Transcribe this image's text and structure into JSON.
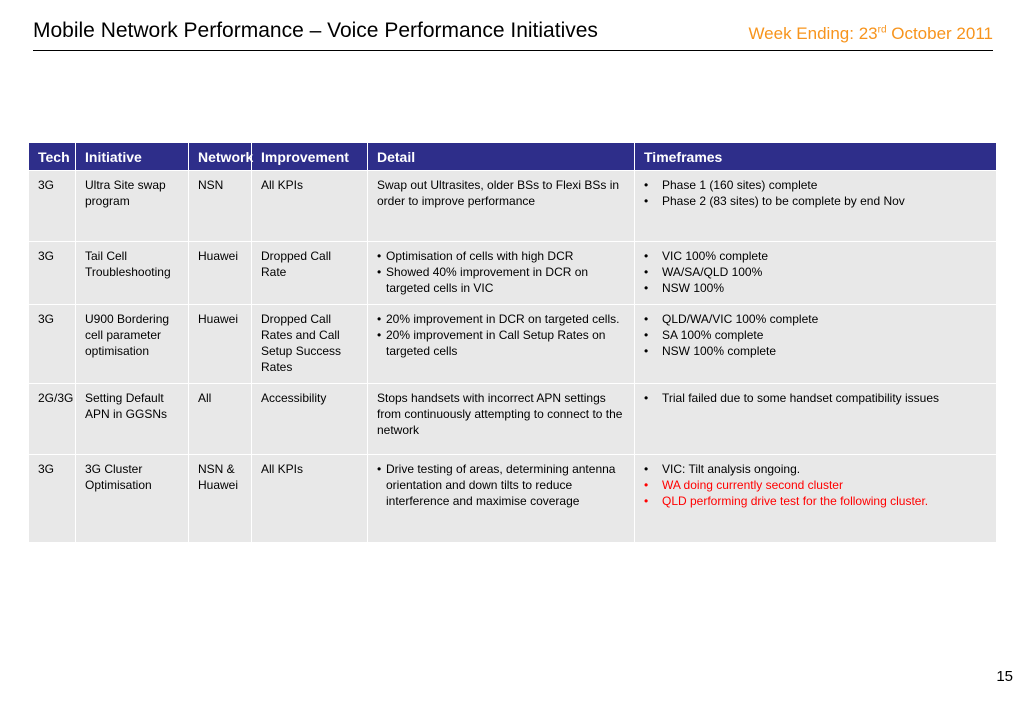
{
  "header": {
    "title": "Mobile Network Performance – Voice Performance Initiatives",
    "week_prefix": "Week Ending: 23",
    "week_sup": "rd",
    "week_suffix": " October 2011"
  },
  "table": {
    "columns": [
      "Tech",
      "Initiative",
      "Network",
      "Improvement",
      "Detail",
      "Timeframes"
    ],
    "rows": [
      {
        "tech": "3G",
        "initiative": "Ultra Site swap program",
        "network": "NSN",
        "improvement": "All KPIs",
        "detail_text": "Swap out Ultrasites, older BSs to Flexi BSs in order to improve performance",
        "timeframes": [
          "Phase 1 (160 sites) complete",
          "Phase 2 (83 sites) to be complete by end Nov"
        ]
      },
      {
        "tech": "3G",
        "initiative": "Tail Cell Troubleshooting",
        "network": "Huawei",
        "improvement": "Dropped Call Rate",
        "detail_bullets": [
          "Optimisation of cells with high DCR",
          "Showed 40% improvement in DCR on targeted cells in VIC"
        ],
        "timeframes": [
          "VIC 100% complete",
          "WA/SA/QLD 100%",
          "NSW 100%"
        ]
      },
      {
        "tech": "3G",
        "initiative": "U900 Bordering cell parameter optimisation",
        "network": "Huawei",
        "improvement": "Dropped Call Rates and Call Setup Success Rates",
        "detail_bullets": [
          "20% improvement in DCR on targeted cells.",
          "20% improvement in Call Setup Rates on targeted cells"
        ],
        "timeframes": [
          "QLD/WA/VIC 100% complete",
          "SA 100% complete",
          "NSW 100% complete"
        ]
      },
      {
        "tech": "2G/3G",
        "initiative": "Setting Default APN in GGSNs",
        "network": "All",
        "improvement": "Accessibility",
        "detail_text": "Stops handsets with incorrect APN settings from continuously attempting to connect to the network",
        "timeframes": [
          "Trial failed due to some handset compatibility issues"
        ]
      },
      {
        "tech": "3G",
        "initiative": "3G Cluster Optimisation",
        "network": "NSN & Huawei",
        "improvement": "All KPIs",
        "detail_bullets": [
          "Drive testing of areas, determining antenna orientation and down tilts to reduce interference and maximise coverage"
        ],
        "timeframes": [
          "VIC: Tilt analysis ongoing.",
          "WA doing currently second cluster",
          "QLD performing drive test for the following cluster."
        ]
      }
    ]
  },
  "colors": {
    "header_bg": "#2e2e8a",
    "cell_bg": "#e8e8e8",
    "week_color": "#f7941d",
    "highlight_red": "#ff0000"
  },
  "page_number": "15"
}
